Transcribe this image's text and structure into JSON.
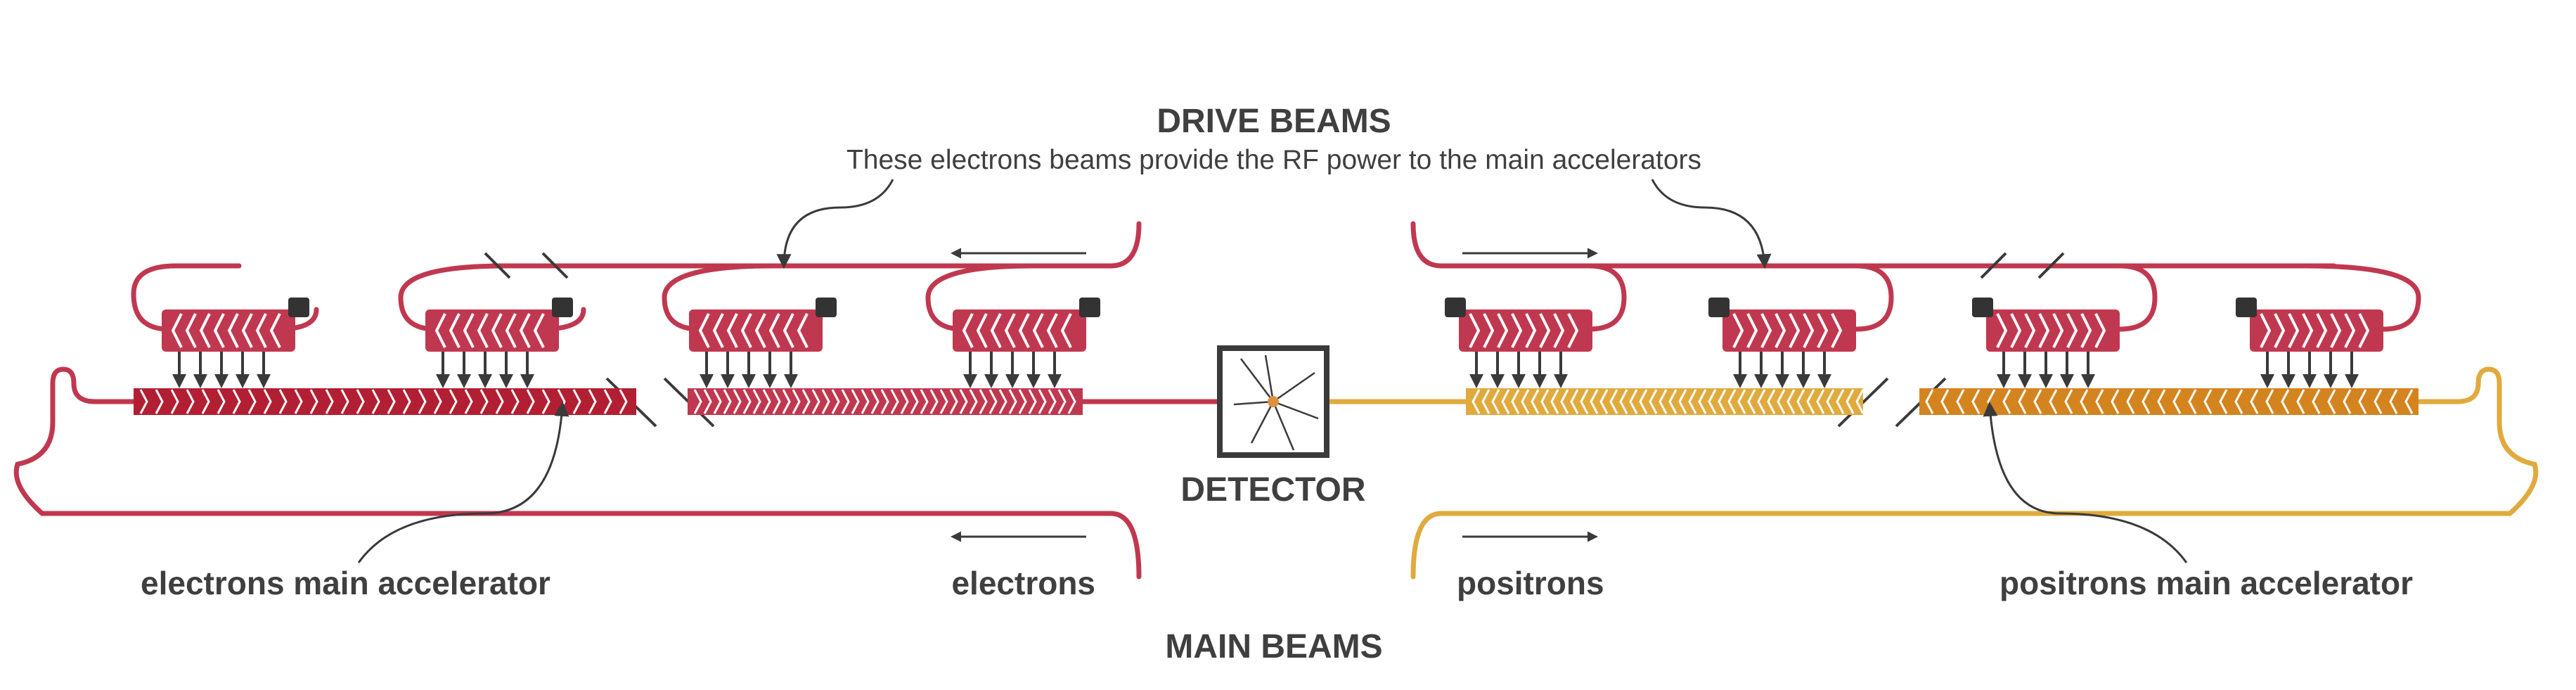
{
  "title": "DRIVE BEAMS",
  "subtitle": "These electrons beams provide the RF power to the main accelerators",
  "labels": {
    "detector": "DETECTOR",
    "electrons_main_accelerator": "electrons main accelerator",
    "electrons": "electrons",
    "positrons": "positrons",
    "positrons_main_accelerator": "positrons main accelerator",
    "main_beams": "MAIN BEAMS"
  },
  "colors": {
    "electron": "#c0384f",
    "electron_dark": "#b21f33",
    "positron": "#e0aa3e",
    "positron_dark": "#d4841f",
    "text": "#3f3f3f",
    "arrow": "#3a3a3a"
  }
}
